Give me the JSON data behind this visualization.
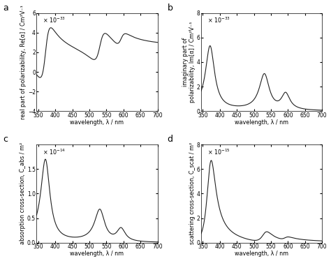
{
  "wavelength_range": [
    340,
    700
  ],
  "panel_a": {
    "label": "a",
    "ylabel": "real part of polarizability, Re[α] / Cm²V⁻¹",
    "ylabel_short": "real part of\npolarizability, Re[α] / Cm²V⁻¹",
    "xlabel": "wavelength, λ / nm",
    "exp_text": "× 10⁻³³",
    "ylim": [
      -4,
      6
    ],
    "yticks": [
      -4,
      -2,
      0,
      2,
      4,
      6
    ]
  },
  "panel_b": {
    "label": "b",
    "ylabel": "imaginary part of\npolarizability, Im[α] / Cm²V⁻¹",
    "xlabel": "wavelength, λ / nm",
    "exp_text": "× 10⁻³³",
    "ylim": [
      0,
      8
    ],
    "yticks": [
      0,
      2,
      4,
      6,
      8
    ]
  },
  "panel_c": {
    "label": "c",
    "ylabel": "absorption cross-section, C_abs / m²",
    "xlabel": "wavelength, λ / nm",
    "exp_text": "× 10⁻¹⁴",
    "ylim": [
      0,
      2.0
    ],
    "yticks": [
      0,
      0.5,
      1.0,
      1.5
    ]
  },
  "panel_d": {
    "label": "d",
    "ylabel": "scattering cross-section, C_scat / m²",
    "xlabel": "wavelength, λ / nm",
    "exp_text": "× 10⁻¹⁵",
    "ylim": [
      0,
      8
    ],
    "yticks": [
      0,
      2,
      4,
      6,
      8
    ]
  },
  "xticks": [
    350,
    400,
    450,
    500,
    550,
    600,
    650,
    700
  ],
  "xlim": [
    345,
    700
  ],
  "line_color": "#222222",
  "line_width": 0.8,
  "font_size": 5.8,
  "panel_label_size": 9.0,
  "tick_font_size": 5.5
}
